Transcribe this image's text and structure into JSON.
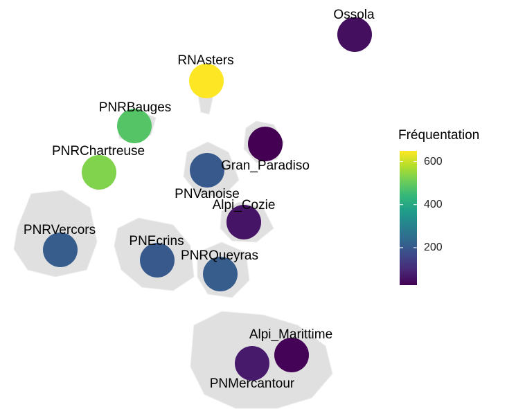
{
  "chart_data": {
    "type": "bubble-map",
    "legend_title": "Fréquentation",
    "colormap": "viridis",
    "clim": [
      26,
      650
    ],
    "cticks": [
      200,
      400,
      600
    ],
    "categories": [
      "Ossola",
      "RNAsters",
      "PNRBauges",
      "PNRChartreuse",
      "Gran_Paradiso",
      "PNVanoise",
      "Alpi_Cozie",
      "PNRVercors",
      "PNEcrins",
      "PNRQueyras",
      "Alpi_Marittime",
      "PNMercantour"
    ],
    "values": [
      50,
      650,
      480,
      530,
      26,
      200,
      60,
      210,
      200,
      210,
      30,
      70
    ]
  }
}
